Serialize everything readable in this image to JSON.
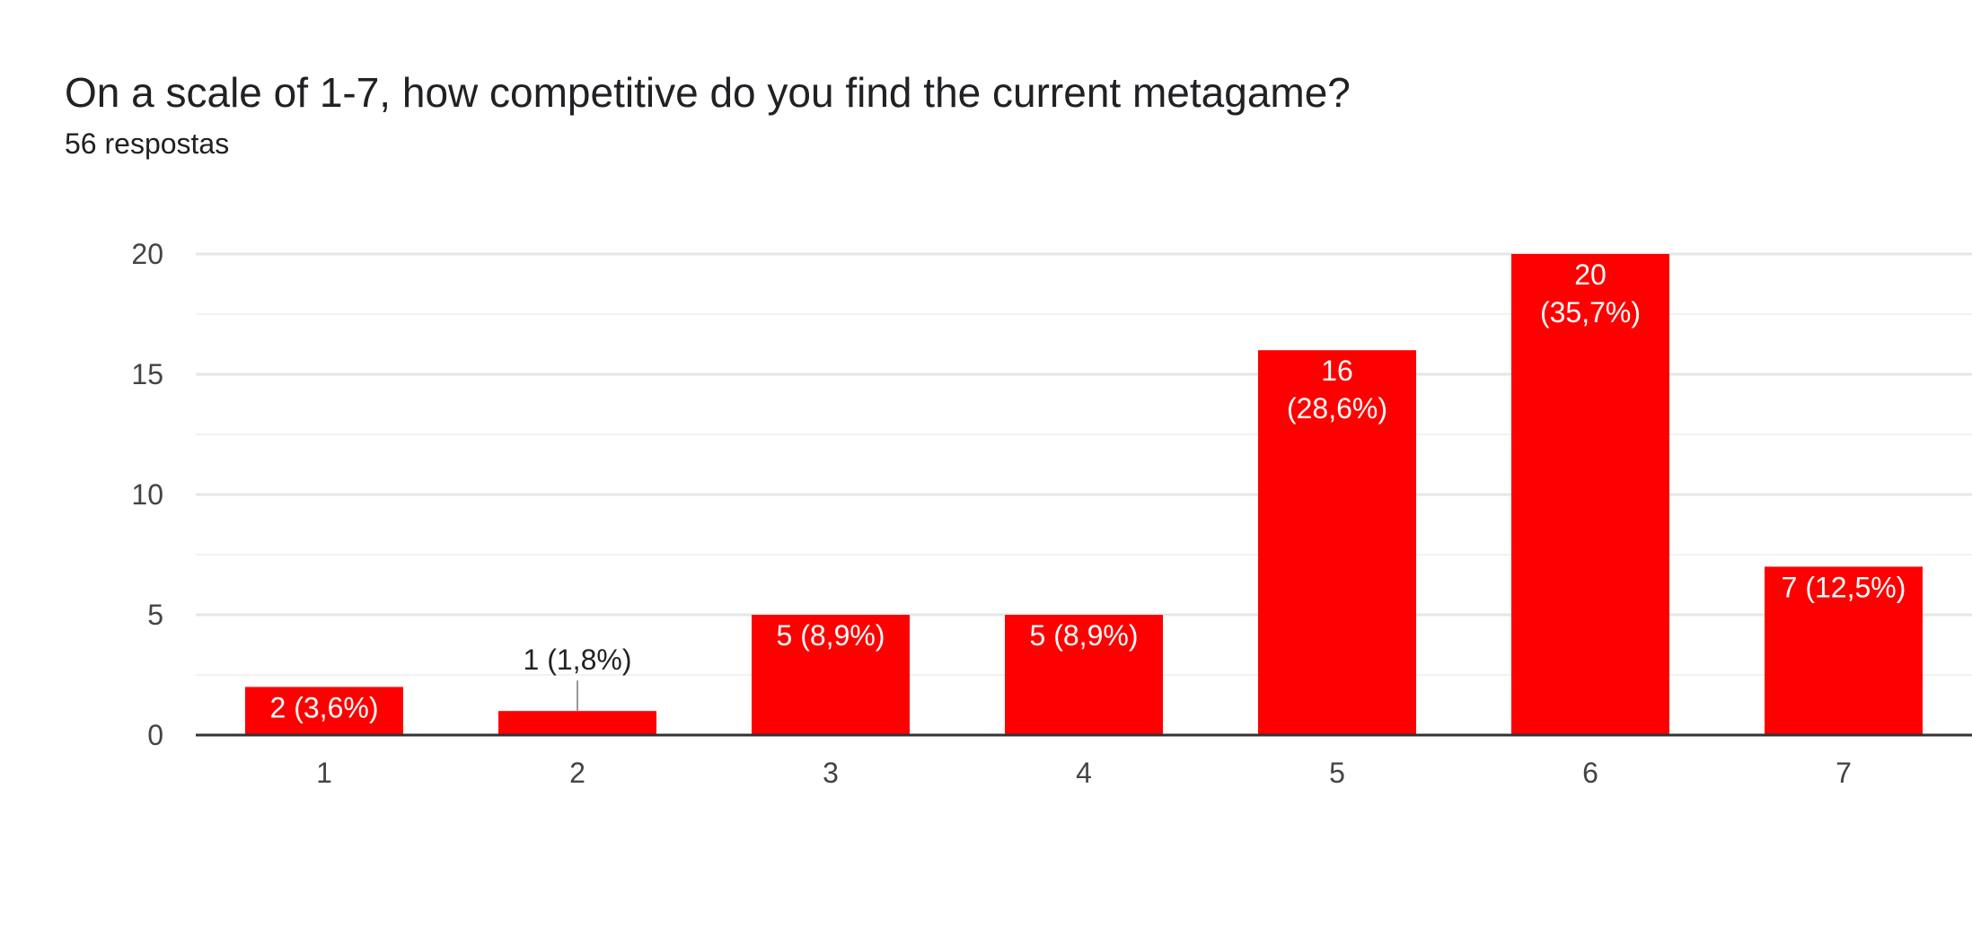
{
  "header": {
    "title": "On a scale of 1-7, how competitive do you find the current metagame?",
    "subtitle": "56 respostas"
  },
  "colors": {
    "bar": "#ff0000",
    "grid": "#e6e6e6",
    "minor_grid": "#f2f2f2",
    "axis": "#333333",
    "label_inside": "#ffffff",
    "label_outside": "#222222",
    "leader": "#999999"
  },
  "chart_data": {
    "type": "bar",
    "title": "On a scale of 1-7, how competitive do you find the current metagame?",
    "subtitle": "56 respostas",
    "categories": [
      "1",
      "2",
      "3",
      "4",
      "5",
      "6",
      "7"
    ],
    "values": [
      2,
      1,
      5,
      5,
      16,
      20,
      7
    ],
    "data_labels": [
      [
        "2 (3,6%)"
      ],
      [
        "1 (1,8%)"
      ],
      [
        "5 (8,9%)"
      ],
      [
        "5 (8,9%)"
      ],
      [
        "16",
        "(28,6%)"
      ],
      [
        "20",
        "(35,7%)"
      ],
      [
        "7 (12,5%)"
      ]
    ],
    "ylim": [
      0,
      20
    ],
    "yticks": [
      0,
      5,
      10,
      15,
      20
    ],
    "ytick_labels": [
      "0",
      "5",
      "10",
      "15",
      "20"
    ],
    "xlabel": "",
    "ylabel": "",
    "grid": true,
    "legend": "none"
  }
}
